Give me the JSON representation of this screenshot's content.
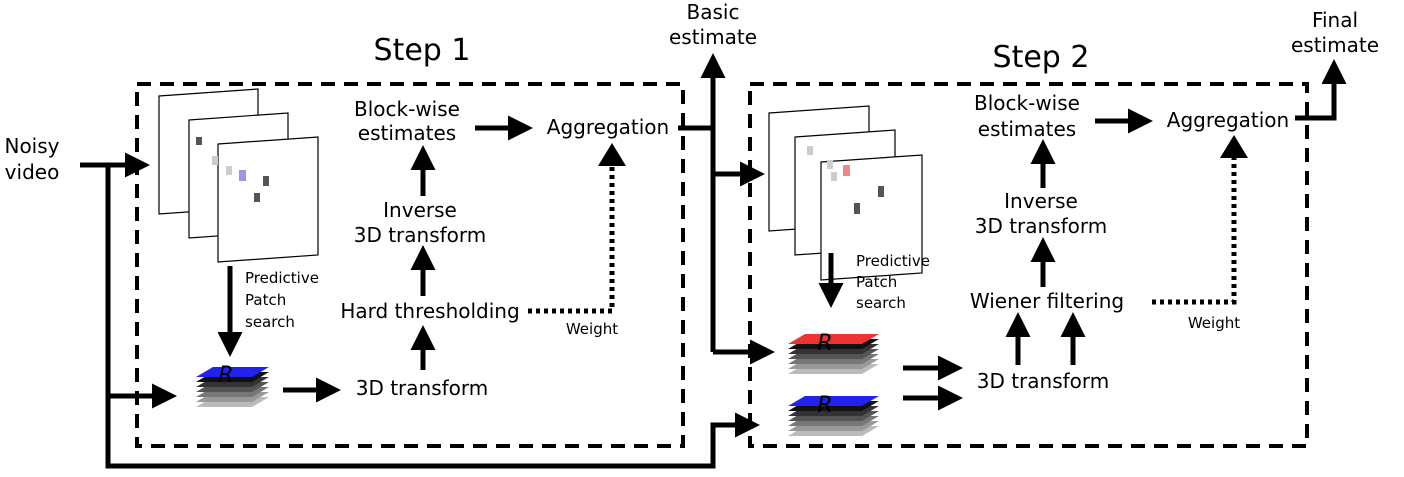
{
  "step1": {
    "title": "Step 1",
    "blockwise": [
      "Block-wise",
      "estimates"
    ],
    "aggregation": "Aggregation",
    "inverse": [
      "Inverse",
      "3D transform"
    ],
    "hard_threshold": "Hard thresholding",
    "transform": "3D transform",
    "patch_search": [
      "Predictive",
      "Patch",
      "search"
    ],
    "weight": "Weight"
  },
  "step2": {
    "title": "Step 2",
    "blockwise": [
      "Block-wise",
      "estimates"
    ],
    "aggregation": "Aggregation",
    "inverse": [
      "Inverse",
      "3D transform"
    ],
    "wiener": "Wiener filtering",
    "transform": "3D transform",
    "patch_search": [
      "Predictive",
      "Patch",
      "search"
    ],
    "weight": "Weight"
  },
  "io": {
    "input": [
      "Noisy",
      "video"
    ],
    "basic": [
      "Basic",
      "estimate"
    ],
    "final": [
      "Final",
      "estimate"
    ]
  },
  "stack_letter": "R",
  "colors": {
    "blue": "#2222ee",
    "red": "#ee3333",
    "dark_patch": "#555555",
    "light_patch": "#cccccc",
    "blue_patch": "#9999dd",
    "red_patch": "#ee8888"
  }
}
